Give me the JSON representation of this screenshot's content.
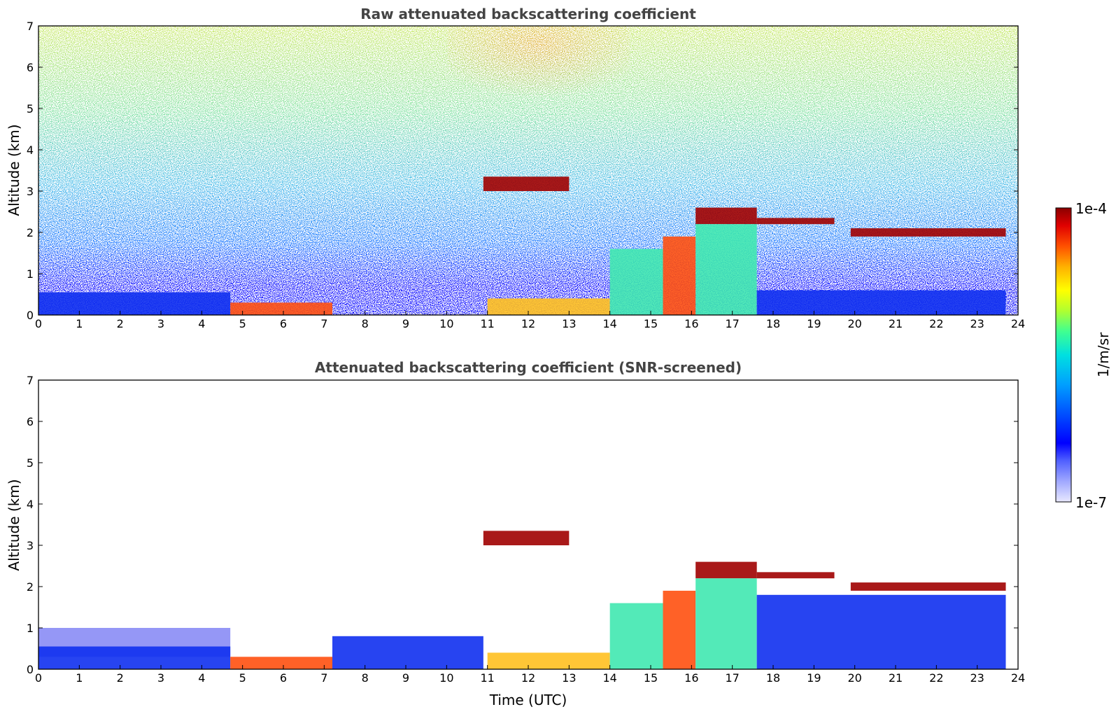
{
  "colors": {
    "colormap": [
      "#e8e8ff",
      "#a0a8ff",
      "#5060ff",
      "#0000ff",
      "#0050ff",
      "#00a0ff",
      "#00e0e0",
      "#40ff90",
      "#b0ff30",
      "#ffff00",
      "#ffb000",
      "#ff5000",
      "#e00000",
      "#8b0000"
    ],
    "background": "#ffffff",
    "axis": "#000000",
    "title": "#444444"
  },
  "colorbar": {
    "max_label": "1e-4",
    "min_label": "1e-7",
    "unit_label": "1/m/sr",
    "scale": "log",
    "range": [
      1e-07,
      0.0001
    ]
  },
  "chart_data": [
    {
      "type": "heatmap",
      "title": "Raw attenuated backscattering coefficient",
      "xlabel": "",
      "ylabel": "Altitude (km)",
      "xlim": [
        0,
        24
      ],
      "ylim": [
        0,
        7
      ],
      "xticks": [
        "0",
        "1",
        "2",
        "3",
        "4",
        "5",
        "6",
        "7",
        "8",
        "9",
        "10",
        "11",
        "12",
        "13",
        "14",
        "15",
        "16",
        "17",
        "18",
        "19",
        "20",
        "21",
        "22",
        "23",
        "24"
      ],
      "yticks": [
        "0",
        "1",
        "2",
        "3",
        "4",
        "5",
        "6",
        "7"
      ],
      "features": [
        {
          "x": [
            0,
            4.7
          ],
          "y": [
            0,
            0.55
          ],
          "level": "low"
        },
        {
          "x": [
            4.7,
            7.2
          ],
          "y": [
            0,
            0.3
          ],
          "level": "high"
        },
        {
          "x": [
            10.9,
            13.0
          ],
          "y": [
            3.0,
            3.35
          ],
          "level": "max"
        },
        {
          "x": [
            11.0,
            14.0
          ],
          "y": [
            0,
            0.4
          ],
          "level": "mid-high"
        },
        {
          "x": [
            14.0,
            15.3
          ],
          "y": [
            0,
            1.6
          ],
          "level": "mid"
        },
        {
          "x": [
            15.3,
            16.1
          ],
          "y": [
            0,
            1.9
          ],
          "level": "high"
        },
        {
          "x": [
            16.1,
            17.6
          ],
          "y": [
            2.2,
            2.6
          ],
          "level": "max"
        },
        {
          "x": [
            16.1,
            17.6
          ],
          "y": [
            0,
            2.2
          ],
          "level": "mid"
        },
        {
          "x": [
            17.6,
            19.5
          ],
          "y": [
            2.2,
            2.35
          ],
          "level": "max"
        },
        {
          "x": [
            19.9,
            23.7
          ],
          "y": [
            1.9,
            2.1
          ],
          "level": "max"
        },
        {
          "x": [
            17.6,
            23.7
          ],
          "y": [
            0,
            0.6
          ],
          "level": "low"
        }
      ]
    },
    {
      "type": "heatmap",
      "title": "Attenuated backscattering coefficient (SNR-screened)",
      "xlabel": "Time (UTC)",
      "ylabel": "Altitude (km)",
      "xlim": [
        0,
        24
      ],
      "ylim": [
        0,
        7
      ],
      "xticks": [
        "0",
        "1",
        "2",
        "3",
        "4",
        "5",
        "6",
        "7",
        "8",
        "9",
        "10",
        "11",
        "12",
        "13",
        "14",
        "15",
        "16",
        "17",
        "18",
        "19",
        "20",
        "21",
        "22",
        "23",
        "24"
      ],
      "yticks": [
        "0",
        "1",
        "2",
        "3",
        "4",
        "5",
        "6",
        "7"
      ],
      "features": [
        {
          "x": [
            0,
            4.7
          ],
          "y": [
            0.3,
            1.0
          ],
          "level": "very-low"
        },
        {
          "x": [
            0,
            4.7
          ],
          "y": [
            0,
            0.55
          ],
          "level": "low"
        },
        {
          "x": [
            4.7,
            7.2
          ],
          "y": [
            0,
            0.3
          ],
          "level": "high"
        },
        {
          "x": [
            7.2,
            10.9
          ],
          "y": [
            0,
            0.8
          ],
          "level": "low"
        },
        {
          "x": [
            10.9,
            13.0
          ],
          "y": [
            3.0,
            3.35
          ],
          "level": "max"
        },
        {
          "x": [
            11.0,
            14.0
          ],
          "y": [
            0,
            0.4
          ],
          "level": "mid-high"
        },
        {
          "x": [
            14.0,
            15.3
          ],
          "y": [
            0,
            1.6
          ],
          "level": "mid"
        },
        {
          "x": [
            15.3,
            16.1
          ],
          "y": [
            0,
            1.9
          ],
          "level": "high"
        },
        {
          "x": [
            16.1,
            17.6
          ],
          "y": [
            2.2,
            2.6
          ],
          "level": "max"
        },
        {
          "x": [
            16.1,
            17.6
          ],
          "y": [
            0,
            2.2
          ],
          "level": "mid"
        },
        {
          "x": [
            17.6,
            19.5
          ],
          "y": [
            2.2,
            2.35
          ],
          "level": "max"
        },
        {
          "x": [
            19.9,
            23.7
          ],
          "y": [
            1.9,
            2.1
          ],
          "level": "max"
        },
        {
          "x": [
            17.6,
            23.7
          ],
          "y": [
            0,
            1.8
          ],
          "level": "low"
        }
      ]
    }
  ]
}
